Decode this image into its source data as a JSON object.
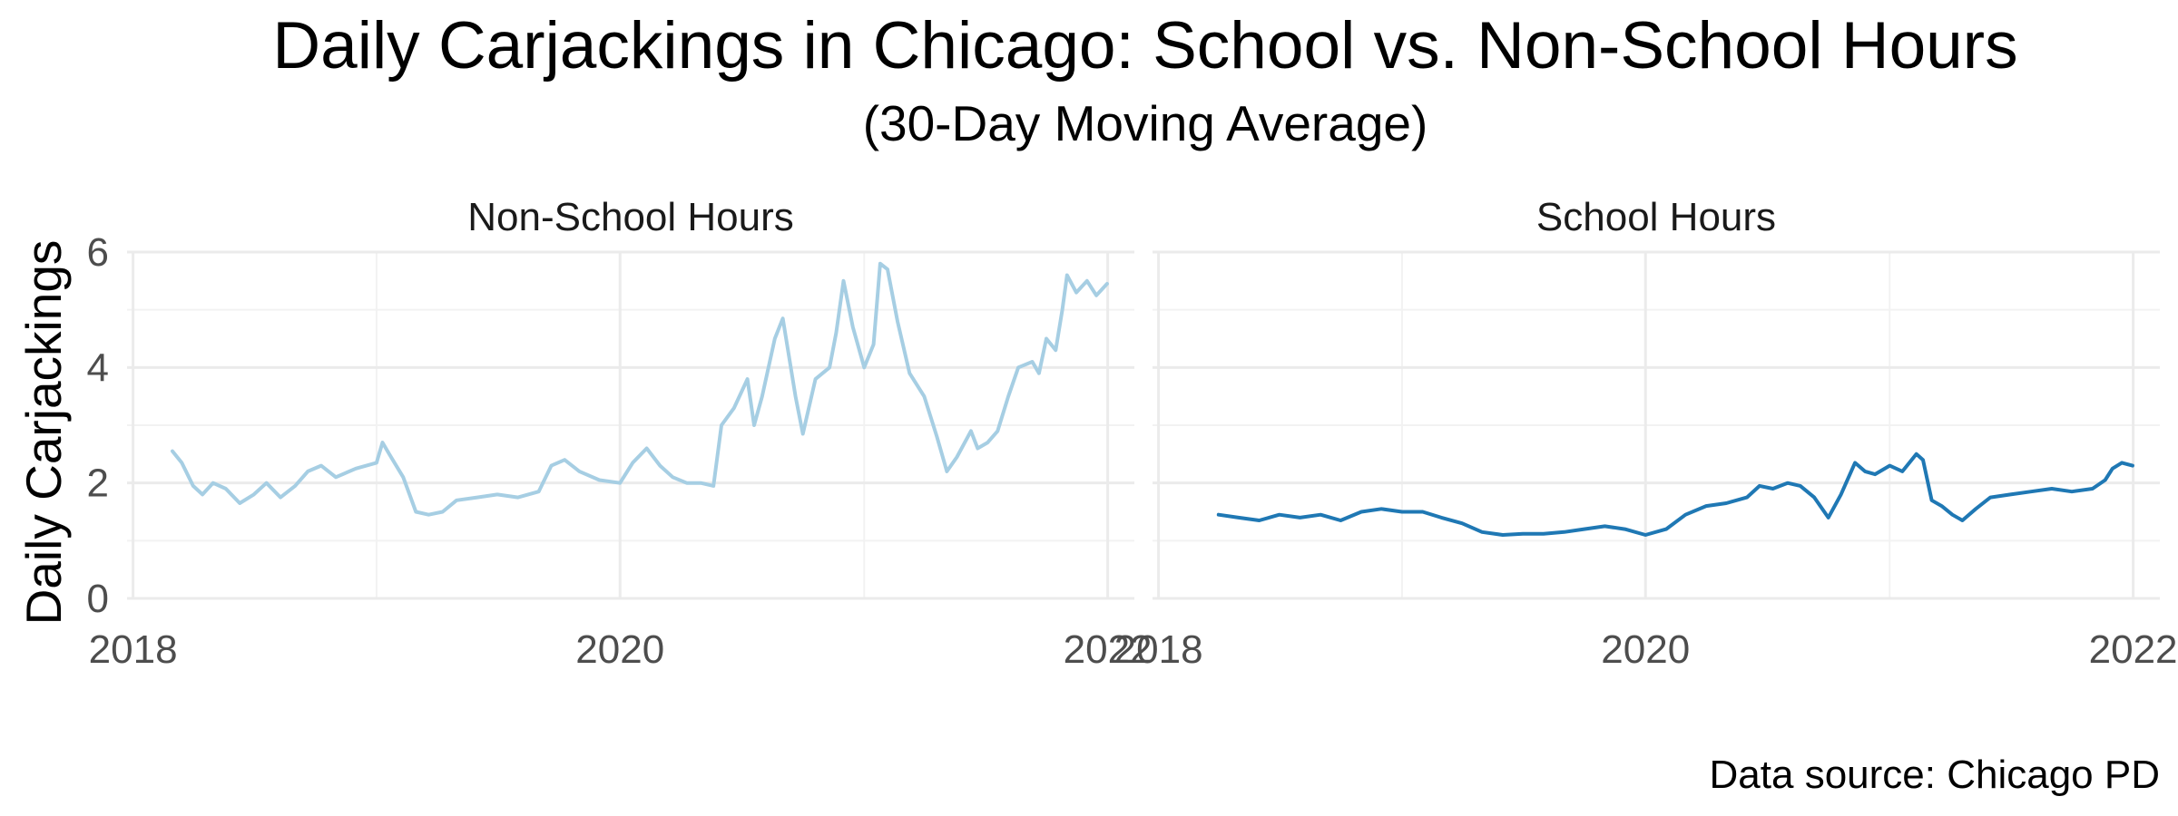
{
  "chart_data": {
    "type": "line",
    "title": "Daily Carjackings in Chicago: School vs. Non-School Hours",
    "subtitle": "(30-Day Moving Average)",
    "ylabel": "Daily Carjackings",
    "xlabel": "",
    "caption": "Data source: Chicago PD",
    "ylim": [
      0,
      6
    ],
    "yticks": [
      0,
      2,
      4,
      6
    ],
    "xlim": [
      "2017-12-23",
      "2022-02-10"
    ],
    "xticks": [
      "2018",
      "2020",
      "2022"
    ],
    "grid": true,
    "legend": "none",
    "panels": [
      {
        "name": "Non-School Hours",
        "color": "#a6cee3",
        "points": [
          [
            "2018-03-01",
            2.55
          ],
          [
            "2018-03-15",
            2.35
          ],
          [
            "2018-04-01",
            1.95
          ],
          [
            "2018-04-15",
            1.8
          ],
          [
            "2018-05-01",
            2.0
          ],
          [
            "2018-05-20",
            1.9
          ],
          [
            "2018-06-10",
            1.65
          ],
          [
            "2018-07-01",
            1.8
          ],
          [
            "2018-07-20",
            2.0
          ],
          [
            "2018-08-10",
            1.75
          ],
          [
            "2018-09-01",
            1.95
          ],
          [
            "2018-09-20",
            2.2
          ],
          [
            "2018-10-10",
            2.3
          ],
          [
            "2018-11-01",
            2.1
          ],
          [
            "2018-12-01",
            2.25
          ],
          [
            "2019-01-01",
            2.35
          ],
          [
            "2019-01-10",
            2.7
          ],
          [
            "2019-01-20",
            2.5
          ],
          [
            "2019-02-10",
            2.1
          ],
          [
            "2019-03-01",
            1.5
          ],
          [
            "2019-03-20",
            1.45
          ],
          [
            "2019-04-10",
            1.5
          ],
          [
            "2019-05-01",
            1.7
          ],
          [
            "2019-06-01",
            1.75
          ],
          [
            "2019-07-01",
            1.8
          ],
          [
            "2019-08-01",
            1.75
          ],
          [
            "2019-09-01",
            1.85
          ],
          [
            "2019-09-20",
            2.3
          ],
          [
            "2019-10-10",
            2.4
          ],
          [
            "2019-11-01",
            2.2
          ],
          [
            "2019-12-01",
            2.05
          ],
          [
            "2020-01-01",
            2.0
          ],
          [
            "2020-01-20",
            2.35
          ],
          [
            "2020-02-10",
            2.6
          ],
          [
            "2020-03-01",
            2.3
          ],
          [
            "2020-03-20",
            2.1
          ],
          [
            "2020-04-10",
            2.0
          ],
          [
            "2020-05-01",
            2.0
          ],
          [
            "2020-05-20",
            1.95
          ],
          [
            "2020-06-01",
            3.0
          ],
          [
            "2020-06-20",
            3.3
          ],
          [
            "2020-07-10",
            3.8
          ],
          [
            "2020-07-20",
            3.0
          ],
          [
            "2020-08-01",
            3.5
          ],
          [
            "2020-08-20",
            4.5
          ],
          [
            "2020-09-01",
            4.85
          ],
          [
            "2020-09-20",
            3.5
          ],
          [
            "2020-10-01",
            2.85
          ],
          [
            "2020-10-20",
            3.8
          ],
          [
            "2020-11-10",
            4.0
          ],
          [
            "2020-11-20",
            4.6
          ],
          [
            "2020-12-01",
            5.5
          ],
          [
            "2020-12-15",
            4.7
          ],
          [
            "2021-01-01",
            4.0
          ],
          [
            "2021-01-15",
            4.4
          ],
          [
            "2021-01-25",
            5.8
          ],
          [
            "2021-02-05",
            5.7
          ],
          [
            "2021-02-20",
            4.8
          ],
          [
            "2021-03-10",
            3.9
          ],
          [
            "2021-04-01",
            3.5
          ],
          [
            "2021-04-20",
            2.8
          ],
          [
            "2021-05-05",
            2.2
          ],
          [
            "2021-05-20",
            2.45
          ],
          [
            "2021-06-10",
            2.9
          ],
          [
            "2021-06-20",
            2.6
          ],
          [
            "2021-07-05",
            2.7
          ],
          [
            "2021-07-20",
            2.9
          ],
          [
            "2021-08-05",
            3.5
          ],
          [
            "2021-08-20",
            4.0
          ],
          [
            "2021-09-10",
            4.1
          ],
          [
            "2021-09-20",
            3.9
          ],
          [
            "2021-10-01",
            4.5
          ],
          [
            "2021-10-15",
            4.3
          ],
          [
            "2021-10-25",
            5.0
          ],
          [
            "2021-11-01",
            5.6
          ],
          [
            "2021-11-15",
            5.3
          ],
          [
            "2021-12-01",
            5.5
          ],
          [
            "2021-12-15",
            5.25
          ],
          [
            "2021-12-31",
            5.45
          ]
        ]
      },
      {
        "name": "School Hours",
        "color": "#1f78b4",
        "points": [
          [
            "2018-04-01",
            1.45
          ],
          [
            "2018-05-01",
            1.4
          ],
          [
            "2018-06-01",
            1.35
          ],
          [
            "2018-07-01",
            1.45
          ],
          [
            "2018-08-01",
            1.4
          ],
          [
            "2018-09-01",
            1.45
          ],
          [
            "2018-10-01",
            1.35
          ],
          [
            "2018-11-01",
            1.5
          ],
          [
            "2018-12-01",
            1.55
          ],
          [
            "2019-01-01",
            1.5
          ],
          [
            "2019-02-01",
            1.5
          ],
          [
            "2019-03-01",
            1.4
          ],
          [
            "2019-04-01",
            1.3
          ],
          [
            "2019-05-01",
            1.15
          ],
          [
            "2019-06-01",
            1.1
          ],
          [
            "2019-07-01",
            1.12
          ],
          [
            "2019-08-01",
            1.12
          ],
          [
            "2019-09-01",
            1.15
          ],
          [
            "2019-10-01",
            1.2
          ],
          [
            "2019-11-01",
            1.25
          ],
          [
            "2019-12-01",
            1.2
          ],
          [
            "2020-01-01",
            1.1
          ],
          [
            "2020-02-01",
            1.2
          ],
          [
            "2020-03-01",
            1.45
          ],
          [
            "2020-04-01",
            1.6
          ],
          [
            "2020-05-01",
            1.65
          ],
          [
            "2020-06-01",
            1.75
          ],
          [
            "2020-06-20",
            1.95
          ],
          [
            "2020-07-10",
            1.9
          ],
          [
            "2020-08-01",
            2.0
          ],
          [
            "2020-08-20",
            1.95
          ],
          [
            "2020-09-10",
            1.75
          ],
          [
            "2020-10-01",
            1.4
          ],
          [
            "2020-10-20",
            1.8
          ],
          [
            "2020-11-10",
            2.35
          ],
          [
            "2020-11-25",
            2.2
          ],
          [
            "2020-12-10",
            2.15
          ],
          [
            "2021-01-01",
            2.3
          ],
          [
            "2021-01-20",
            2.2
          ],
          [
            "2021-02-10",
            2.5
          ],
          [
            "2021-02-20",
            2.4
          ],
          [
            "2021-03-05",
            1.7
          ],
          [
            "2021-03-20",
            1.6
          ],
          [
            "2021-04-05",
            1.45
          ],
          [
            "2021-04-20",
            1.35
          ],
          [
            "2021-05-10",
            1.55
          ],
          [
            "2021-06-01",
            1.75
          ],
          [
            "2021-07-01",
            1.8
          ],
          [
            "2021-08-01",
            1.85
          ],
          [
            "2021-09-01",
            1.9
          ],
          [
            "2021-10-01",
            1.85
          ],
          [
            "2021-11-01",
            1.9
          ],
          [
            "2021-11-20",
            2.05
          ],
          [
            "2021-12-01",
            2.25
          ],
          [
            "2021-12-15",
            2.35
          ],
          [
            "2021-12-31",
            2.3
          ]
        ]
      }
    ]
  }
}
